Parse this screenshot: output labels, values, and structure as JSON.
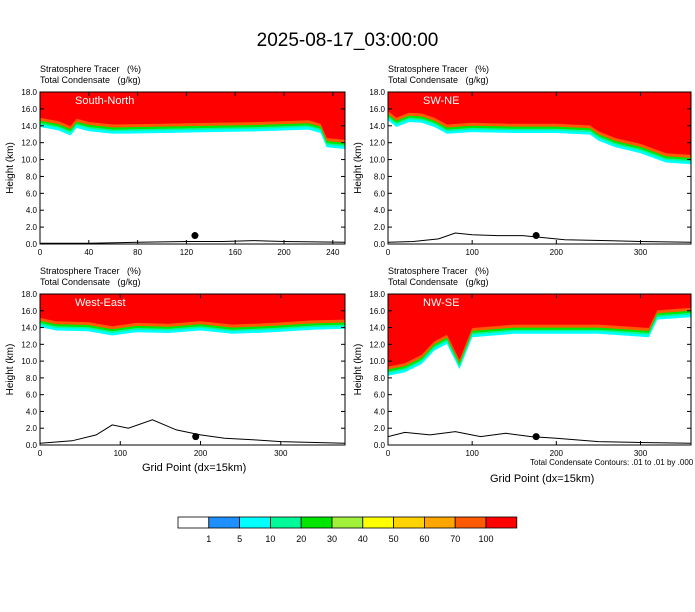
{
  "figure": {
    "title": "2025-08-17_03:00:00",
    "field1": "Stratosphere Tracer   (%)",
    "field2": "Total Condensate   (g/kg)",
    "xlabel": "Grid Point (dx=15km)",
    "ylabel": "Height (km)",
    "note": "Total Condensate Contours: .01 to .01 by .000"
  },
  "colors": {
    "levels": [
      "#ffffff",
      "#1e90ff",
      "#00ffff",
      "#00fa9a",
      "#00e600",
      "#a0f03c",
      "#ffff00",
      "#ffd200",
      "#ffa500",
      "#ff5a00",
      "#ff0000"
    ],
    "contour": "#000000",
    "marker": "#000000"
  },
  "chart_data": [
    {
      "type": "heatmap",
      "name": "South-North",
      "xlim": [
        0,
        250
      ],
      "ylim": [
        0,
        18
      ],
      "xticks": [
        0,
        40,
        80,
        120,
        160,
        200,
        240
      ],
      "yticks": [
        0.0,
        2.0,
        4.0,
        6.0,
        8.0,
        10.0,
        12.0,
        14.0,
        16.0,
        18.0
      ],
      "tropopause_km": [
        [
          0,
          14.6
        ],
        [
          15,
          14.2
        ],
        [
          25,
          13.6
        ],
        [
          30,
          14.5
        ],
        [
          40,
          14.1
        ],
        [
          60,
          13.8
        ],
        [
          100,
          13.9
        ],
        [
          140,
          14.0
        ],
        [
          180,
          14.1
        ],
        [
          220,
          14.3
        ],
        [
          230,
          13.9
        ],
        [
          235,
          12.2
        ],
        [
          250,
          12.0
        ]
      ],
      "terrain_km": [
        [
          0,
          0.1
        ],
        [
          40,
          0.1
        ],
        [
          80,
          0.2
        ],
        [
          120,
          0.3
        ],
        [
          150,
          0.3
        ],
        [
          175,
          0.4
        ],
        [
          200,
          0.3
        ],
        [
          250,
          0.2
        ]
      ],
      "marker_x": 127
    },
    {
      "type": "heatmap",
      "name": "SW-NE",
      "xlim": [
        0,
        360
      ],
      "ylim": [
        0,
        18
      ],
      "xticks": [
        0,
        100,
        200,
        300
      ],
      "yticks": [
        0.0,
        2.0,
        4.0,
        6.0,
        8.0,
        10.0,
        12.0,
        14.0,
        16.0,
        18.0
      ],
      "tropopause_km": [
        [
          0,
          15.4
        ],
        [
          10,
          14.6
        ],
        [
          25,
          15.2
        ],
        [
          40,
          15.1
        ],
        [
          55,
          14.6
        ],
        [
          70,
          13.8
        ],
        [
          100,
          14.0
        ],
        [
          150,
          13.9
        ],
        [
          200,
          13.9
        ],
        [
          240,
          13.7
        ],
        [
          250,
          13.0
        ],
        [
          270,
          12.2
        ],
        [
          300,
          11.5
        ],
        [
          330,
          10.4
        ],
        [
          360,
          10.2
        ]
      ],
      "terrain_km": [
        [
          0,
          0.2
        ],
        [
          30,
          0.3
        ],
        [
          60,
          0.6
        ],
        [
          80,
          1.3
        ],
        [
          100,
          1.1
        ],
        [
          130,
          1.0
        ],
        [
          160,
          1.0
        ],
        [
          180,
          0.8
        ],
        [
          210,
          0.5
        ],
        [
          260,
          0.4
        ],
        [
          300,
          0.3
        ],
        [
          360,
          0.2
        ]
      ],
      "marker_x": 176
    },
    {
      "type": "heatmap",
      "name": "West-East",
      "xlim": [
        0,
        380
      ],
      "ylim": [
        0,
        18
      ],
      "xticks": [
        0,
        100,
        200,
        300
      ],
      "yticks": [
        0.0,
        2.0,
        4.0,
        6.0,
        8.0,
        10.0,
        12.0,
        14.0,
        16.0,
        18.0
      ],
      "tropopause_km": [
        [
          0,
          14.8
        ],
        [
          20,
          14.4
        ],
        [
          60,
          14.3
        ],
        [
          90,
          13.8
        ],
        [
          120,
          14.2
        ],
        [
          160,
          14.1
        ],
        [
          200,
          14.4
        ],
        [
          240,
          14.0
        ],
        [
          290,
          14.2
        ],
        [
          340,
          14.5
        ],
        [
          380,
          14.6
        ]
      ],
      "terrain_km": [
        [
          0,
          0.2
        ],
        [
          40,
          0.5
        ],
        [
          70,
          1.2
        ],
        [
          90,
          2.4
        ],
        [
          110,
          2.0
        ],
        [
          140,
          3.0
        ],
        [
          170,
          1.8
        ],
        [
          200,
          1.2
        ],
        [
          230,
          0.8
        ],
        [
          270,
          0.6
        ],
        [
          300,
          0.4
        ],
        [
          380,
          0.2
        ]
      ],
      "marker_x": 194
    },
    {
      "type": "heatmap",
      "name": "NW-SE",
      "xlim": [
        0,
        360
      ],
      "ylim": [
        0,
        18
      ],
      "xticks": [
        0,
        100,
        200,
        300
      ],
      "yticks": [
        0.0,
        2.0,
        4.0,
        6.0,
        8.0,
        10.0,
        12.0,
        14.0,
        16.0,
        18.0
      ],
      "tropopause_km": [
        [
          0,
          9.0
        ],
        [
          20,
          9.4
        ],
        [
          40,
          10.4
        ],
        [
          55,
          12.0
        ],
        [
          70,
          12.8
        ],
        [
          85,
          9.8
        ],
        [
          100,
          13.6
        ],
        [
          150,
          14.0
        ],
        [
          200,
          14.0
        ],
        [
          250,
          14.0
        ],
        [
          280,
          13.8
        ],
        [
          310,
          13.6
        ],
        [
          320,
          15.7
        ],
        [
          360,
          16.0
        ]
      ],
      "terrain_km": [
        [
          0,
          1.0
        ],
        [
          20,
          1.5
        ],
        [
          50,
          1.2
        ],
        [
          80,
          1.6
        ],
        [
          110,
          1.0
        ],
        [
          140,
          1.4
        ],
        [
          170,
          1.0
        ],
        [
          200,
          0.8
        ],
        [
          250,
          0.4
        ],
        [
          300,
          0.3
        ],
        [
          360,
          0.2
        ]
      ],
      "marker_x": 176
    }
  ],
  "legend": {
    "labels": [
      "1",
      "5",
      "10",
      "20",
      "30",
      "40",
      "50",
      "60",
      "70",
      "100"
    ]
  }
}
